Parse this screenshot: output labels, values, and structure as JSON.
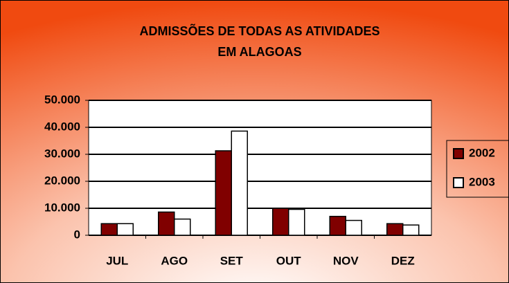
{
  "chart_data": {
    "type": "bar",
    "title": "ADMISSÕES DE TODAS AS ATIVIDADES EM ALAGOAS",
    "categories": [
      "JUL",
      "AGO",
      "SET",
      "OUT",
      "NOV",
      "DEZ"
    ],
    "series": [
      {
        "name": "2002",
        "color": "#800000",
        "values": [
          4300,
          8600,
          31300,
          10000,
          7000,
          4300
        ]
      },
      {
        "name": "2003",
        "color": "#ffffff",
        "values": [
          4300,
          6000,
          38600,
          9600,
          5500,
          3800
        ]
      }
    ],
    "ylim": [
      0,
      50000
    ],
    "yticks": [
      {
        "value": 0,
        "label": "0"
      },
      {
        "value": 10000,
        "label": "10.000"
      },
      {
        "value": 20000,
        "label": "20.000"
      },
      {
        "value": 30000,
        "label": "30.000"
      },
      {
        "value": 40000,
        "label": "40.000"
      },
      {
        "value": 50000,
        "label": "50.000"
      }
    ],
    "grid": true,
    "legend": "right"
  }
}
